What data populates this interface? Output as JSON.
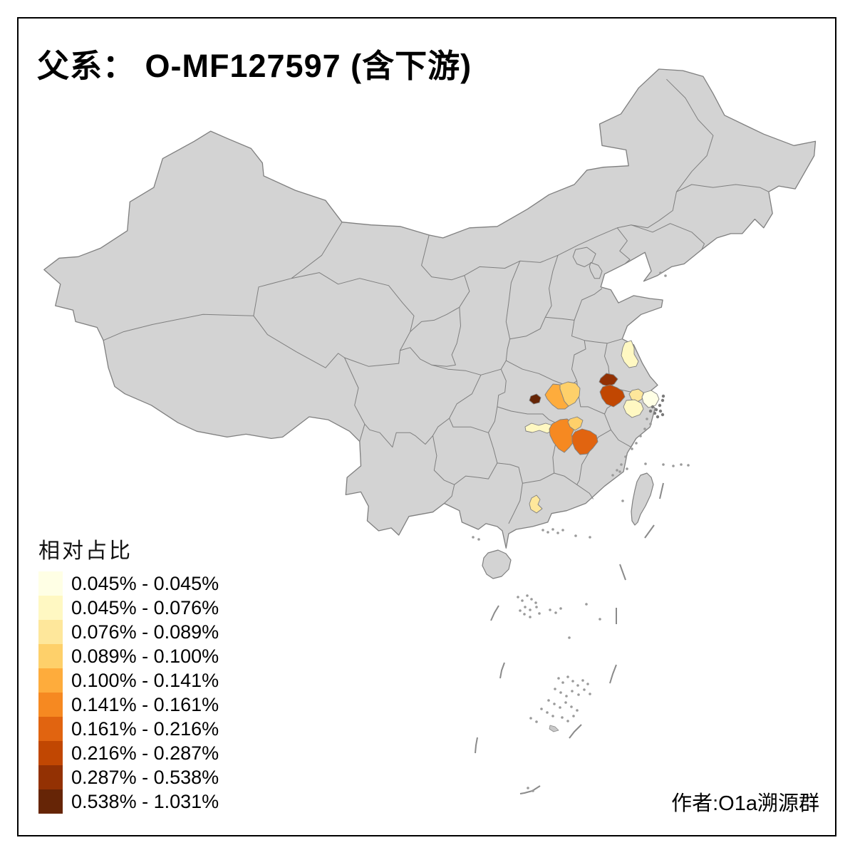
{
  "chart_data": {
    "type": "heatmap",
    "map_type": "choropleth-china-prefectures",
    "title": "父系： O-MF127597 (含下游)",
    "legend_title": "相对占比",
    "unit": "%",
    "attribution": "作者:O1a溯源群",
    "base_map": {
      "land_fill": "#D3D3D3",
      "boundary_color": "#7F7F7F",
      "sea_color": "#FFFFFF",
      "frame_color": "#000000"
    },
    "classes": [
      {
        "index": 1,
        "range": "0.045% - 0.045%",
        "color": "#FFFFE5"
      },
      {
        "index": 2,
        "range": "0.045% - 0.076%",
        "color": "#FFF8C2"
      },
      {
        "index": 3,
        "range": "0.076% - 0.089%",
        "color": "#FEE79B"
      },
      {
        "index": 4,
        "range": "0.089% - 0.100%",
        "color": "#FED06A"
      },
      {
        "index": 5,
        "range": "0.100% - 0.141%",
        "color": "#FEAC3C"
      },
      {
        "index": 6,
        "range": "0.141% - 0.161%",
        "color": "#F68921"
      },
      {
        "index": 7,
        "range": "0.161% - 0.216%",
        "color": "#E16410"
      },
      {
        "index": 8,
        "range": "0.216% - 0.287%",
        "color": "#C14702"
      },
      {
        "index": 9,
        "range": "0.287% - 0.538%",
        "color": "#933103"
      },
      {
        "index": 10,
        "range": "0.538% - 1.031%",
        "color": "#662506"
      }
    ],
    "regions": [
      {
        "id": "r1",
        "class_index": 2,
        "range": "0.045% - 0.076%"
      },
      {
        "id": "r2",
        "class_index": 10,
        "range": "0.538% - 1.031%"
      },
      {
        "id": "r3",
        "class_index": 5,
        "range": "0.100% - 0.141%"
      },
      {
        "id": "r4",
        "class_index": 4,
        "range": "0.089% - 0.100%"
      },
      {
        "id": "r5",
        "class_index": 9,
        "range": "0.287% - 0.538%"
      },
      {
        "id": "r6",
        "class_index": 8,
        "range": "0.216% - 0.287%"
      },
      {
        "id": "r7",
        "class_index": 3,
        "range": "0.076% - 0.089%"
      },
      {
        "id": "r8",
        "class_index": 1,
        "range": "0.045% - 0.045%"
      },
      {
        "id": "r9",
        "class_index": 2,
        "range": "0.045% - 0.076%"
      },
      {
        "id": "r10",
        "class_index": 2,
        "range": "0.045% - 0.076%"
      },
      {
        "id": "r11",
        "class_index": 6,
        "range": "0.141% - 0.161%"
      },
      {
        "id": "r12",
        "class_index": 4,
        "range": "0.089% - 0.100%"
      },
      {
        "id": "r13",
        "class_index": 7,
        "range": "0.161% - 0.216%"
      },
      {
        "id": "r14",
        "class_index": 3,
        "range": "0.076% - 0.089%"
      }
    ]
  }
}
